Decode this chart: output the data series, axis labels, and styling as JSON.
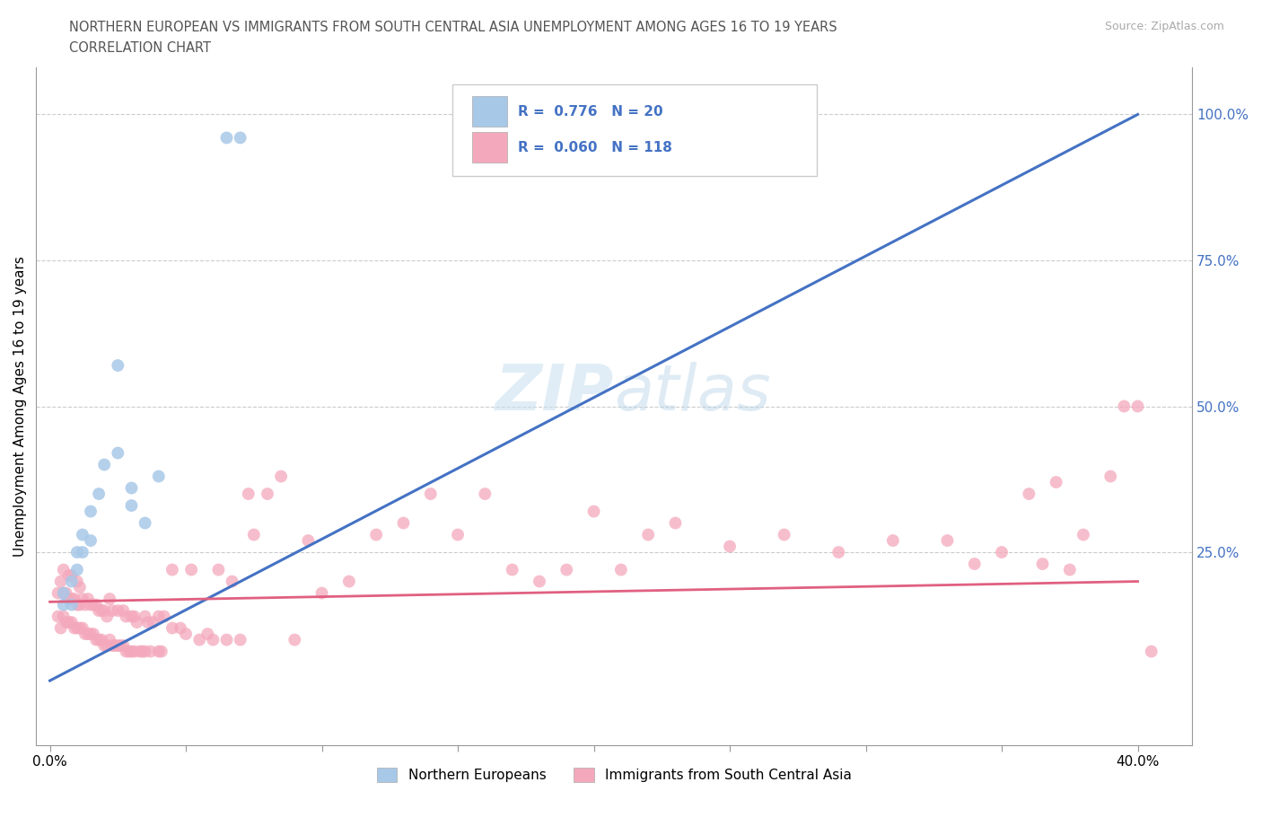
{
  "title_line1": "NORTHERN EUROPEAN VS IMMIGRANTS FROM SOUTH CENTRAL ASIA UNEMPLOYMENT AMONG AGES 16 TO 19 YEARS",
  "title_line2": "CORRELATION CHART",
  "source": "Source: ZipAtlas.com",
  "xlabel_ticks": [
    "0.0%",
    "",
    "",
    "",
    "",
    "",
    "",
    "",
    "40.0%"
  ],
  "xlabel_tick_vals": [
    0.0,
    0.05,
    0.1,
    0.15,
    0.2,
    0.25,
    0.3,
    0.35,
    0.4
  ],
  "ylabel": "Unemployment Among Ages 16 to 19 years",
  "right_ytick_labels": [
    "100.0%",
    "75.0%",
    "50.0%",
    "25.0%"
  ],
  "right_ytick_vals": [
    1.0,
    0.75,
    0.5,
    0.25
  ],
  "xlim": [
    -0.005,
    0.42
  ],
  "ylim": [
    -0.08,
    1.08
  ],
  "blue_R": 0.776,
  "blue_N": 20,
  "pink_R": 0.06,
  "pink_N": 118,
  "blue_color": "#a8c8e8",
  "pink_color": "#f4a8bc",
  "blue_line_color": "#4472c4",
  "pink_line_color": "#e06080",
  "legend_label_blue": "Northern Europeans",
  "legend_label_pink": "Immigrants from South Central Asia",
  "watermark_zip": "ZIP",
  "watermark_atlas": "atlas",
  "blue_line_x": [
    0.0,
    0.4
  ],
  "blue_line_y": [
    0.03,
    1.0
  ],
  "pink_line_x": [
    0.0,
    0.4
  ],
  "pink_line_y": [
    0.165,
    0.2
  ],
  "blue_scatter_x": [
    0.005,
    0.005,
    0.008,
    0.008,
    0.01,
    0.01,
    0.012,
    0.012,
    0.015,
    0.015,
    0.018,
    0.02,
    0.025,
    0.025,
    0.03,
    0.03,
    0.035,
    0.04,
    0.065,
    0.07
  ],
  "blue_scatter_y": [
    0.16,
    0.18,
    0.16,
    0.2,
    0.22,
    0.25,
    0.25,
    0.28,
    0.27,
    0.32,
    0.35,
    0.4,
    0.57,
    0.42,
    0.36,
    0.33,
    0.3,
    0.38,
    0.96,
    0.96
  ],
  "pink_scatter_x": [
    0.003,
    0.003,
    0.004,
    0.004,
    0.005,
    0.005,
    0.005,
    0.006,
    0.006,
    0.007,
    0.007,
    0.007,
    0.008,
    0.008,
    0.008,
    0.009,
    0.009,
    0.01,
    0.01,
    0.01,
    0.011,
    0.011,
    0.011,
    0.012,
    0.012,
    0.013,
    0.013,
    0.014,
    0.014,
    0.015,
    0.015,
    0.016,
    0.016,
    0.017,
    0.017,
    0.018,
    0.018,
    0.019,
    0.019,
    0.02,
    0.02,
    0.021,
    0.021,
    0.022,
    0.022,
    0.023,
    0.023,
    0.024,
    0.025,
    0.025,
    0.026,
    0.027,
    0.027,
    0.028,
    0.028,
    0.029,
    0.03,
    0.03,
    0.031,
    0.031,
    0.032,
    0.033,
    0.034,
    0.035,
    0.035,
    0.036,
    0.037,
    0.038,
    0.04,
    0.04,
    0.041,
    0.042,
    0.045,
    0.045,
    0.048,
    0.05,
    0.052,
    0.055,
    0.058,
    0.06,
    0.062,
    0.065,
    0.067,
    0.07,
    0.073,
    0.075,
    0.08,
    0.085,
    0.09,
    0.095,
    0.1,
    0.11,
    0.12,
    0.13,
    0.14,
    0.15,
    0.16,
    0.17,
    0.18,
    0.19,
    0.2,
    0.21,
    0.22,
    0.23,
    0.25,
    0.27,
    0.29,
    0.31,
    0.33,
    0.34,
    0.35,
    0.36,
    0.365,
    0.37,
    0.375,
    0.38,
    0.39,
    0.395,
    0.4,
    0.405
  ],
  "pink_scatter_y": [
    0.14,
    0.18,
    0.12,
    0.2,
    0.14,
    0.18,
    0.22,
    0.13,
    0.18,
    0.13,
    0.17,
    0.21,
    0.13,
    0.17,
    0.21,
    0.12,
    0.17,
    0.12,
    0.16,
    0.2,
    0.12,
    0.16,
    0.19,
    0.12,
    0.17,
    0.11,
    0.16,
    0.11,
    0.17,
    0.11,
    0.16,
    0.11,
    0.16,
    0.1,
    0.16,
    0.1,
    0.15,
    0.1,
    0.15,
    0.09,
    0.15,
    0.09,
    0.14,
    0.1,
    0.17,
    0.09,
    0.15,
    0.09,
    0.09,
    0.15,
    0.09,
    0.09,
    0.15,
    0.08,
    0.14,
    0.08,
    0.08,
    0.14,
    0.08,
    0.14,
    0.13,
    0.08,
    0.08,
    0.08,
    0.14,
    0.13,
    0.08,
    0.13,
    0.08,
    0.14,
    0.08,
    0.14,
    0.12,
    0.22,
    0.12,
    0.11,
    0.22,
    0.1,
    0.11,
    0.1,
    0.22,
    0.1,
    0.2,
    0.1,
    0.35,
    0.28,
    0.35,
    0.38,
    0.1,
    0.27,
    0.18,
    0.2,
    0.28,
    0.3,
    0.35,
    0.28,
    0.35,
    0.22,
    0.2,
    0.22,
    0.32,
    0.22,
    0.28,
    0.3,
    0.26,
    0.28,
    0.25,
    0.27,
    0.27,
    0.23,
    0.25,
    0.35,
    0.23,
    0.37,
    0.22,
    0.28,
    0.38,
    0.5,
    0.5,
    0.08
  ]
}
